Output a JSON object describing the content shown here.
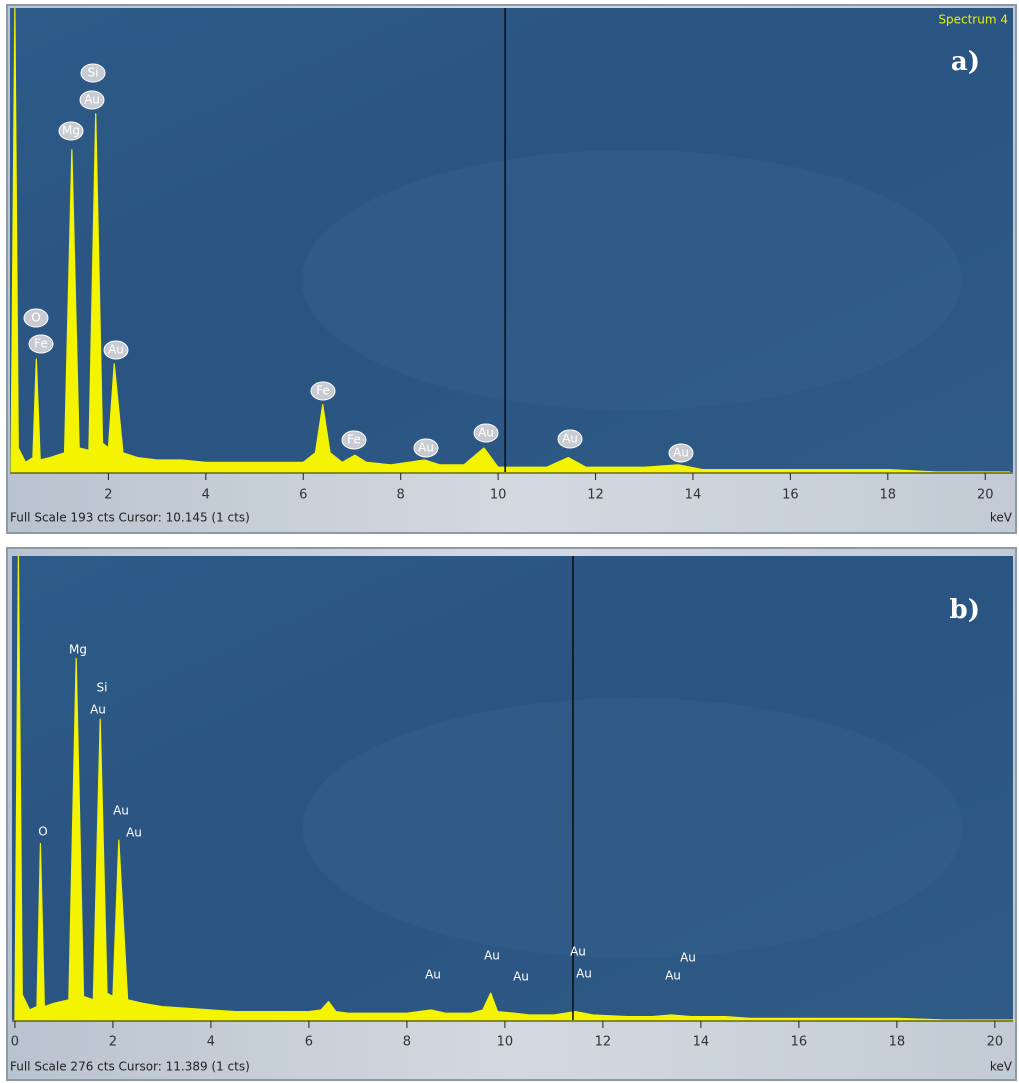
{
  "chart_data": [
    {
      "type": "area",
      "panel_label": "a)",
      "spectrum_label": "Spectrum 4",
      "footer": "Full Scale 193 cts Cursor: 10.145  (1 cts)",
      "xlabel": "keV",
      "cursor": 10.145,
      "color": "#f4f400",
      "x": [
        0,
        0.08,
        0.15,
        0.3,
        0.45,
        0.52,
        0.6,
        0.8,
        1.1,
        1.25,
        1.4,
        1.6,
        1.74,
        1.88,
        2.0,
        2.12,
        2.3,
        2.6,
        3.0,
        3.5,
        4.0,
        4.5,
        5.0,
        5.5,
        6.0,
        6.25,
        6.4,
        6.55,
        6.8,
        7.06,
        7.3,
        7.8,
        8.49,
        8.8,
        9.3,
        9.71,
        10.0,
        10.5,
        11.0,
        11.44,
        11.8,
        12.5,
        13.0,
        13.7,
        14.2,
        15,
        16,
        17,
        18,
        19,
        20,
        20.5
      ],
      "values": [
        0,
        193,
        10,
        4,
        6,
        47,
        5,
        6,
        8,
        134,
        10,
        9,
        149,
        12,
        10,
        45,
        8,
        6,
        5,
        5,
        4,
        4,
        4,
        4,
        4,
        8,
        28,
        8,
        4,
        7,
        4,
        3,
        5,
        3,
        3,
        10,
        2,
        2,
        2,
        6,
        2,
        2,
        2,
        3,
        1,
        1,
        1,
        1,
        1,
        0,
        0,
        0
      ],
      "xlim": [
        -0.02,
        20.57
      ],
      "ylim": [
        0,
        193
      ],
      "xticks": [
        2,
        4,
        6,
        8,
        10,
        12,
        14,
        16,
        18,
        20
      ],
      "annotations": [
        "O",
        "Fe",
        "Mg",
        "Si",
        "Au",
        "Au",
        "Fe",
        "Fe",
        "Au",
        "Au",
        "Au",
        "Au"
      ]
    },
    {
      "type": "area",
      "panel_label": "b)",
      "footer": "Full Scale 276 cts Cursor: 11.389  (1 cts)",
      "xlabel": "keV",
      "cursor": 11.389,
      "color": "#f4f400",
      "x": [
        0,
        0.07,
        0.15,
        0.3,
        0.45,
        0.52,
        0.6,
        0.8,
        1.1,
        1.25,
        1.4,
        1.6,
        1.74,
        1.88,
        2.0,
        2.12,
        2.3,
        2.6,
        3.0,
        3.5,
        4.0,
        4.5,
        5.0,
        5.5,
        6.0,
        6.25,
        6.4,
        6.55,
        6.8,
        7.5,
        8.0,
        8.49,
        8.8,
        9.3,
        9.55,
        9.71,
        9.85,
        10.2,
        10.5,
        11.0,
        11.44,
        11.8,
        12.5,
        13.0,
        13.4,
        13.8,
        14.5,
        15,
        16,
        17,
        18,
        19,
        20,
        20.4
      ],
      "values": [
        0,
        276,
        15,
        6,
        8,
        105,
        8,
        10,
        12,
        215,
        14,
        12,
        179,
        16,
        14,
        107,
        12,
        10,
        8,
        7,
        6,
        5,
        5,
        5,
        5,
        6,
        11,
        5,
        4,
        4,
        4,
        6,
        4,
        4,
        6,
        16,
        5,
        4,
        3,
        3,
        5,
        3,
        2,
        2,
        3,
        2,
        2,
        1,
        1,
        1,
        1,
        0,
        0,
        0
      ],
      "xlim": [
        -0.06,
        20.37
      ],
      "ylim": [
        0,
        276
      ],
      "xticks": [
        0,
        2,
        4,
        6,
        8,
        10,
        12,
        14,
        16,
        18,
        20
      ],
      "annotations": [
        "Mg",
        "Si",
        "Au",
        "O",
        "Au",
        "Au",
        "Au",
        "Au",
        "Au",
        "Au",
        "Au",
        "Au",
        "Au"
      ]
    }
  ]
}
